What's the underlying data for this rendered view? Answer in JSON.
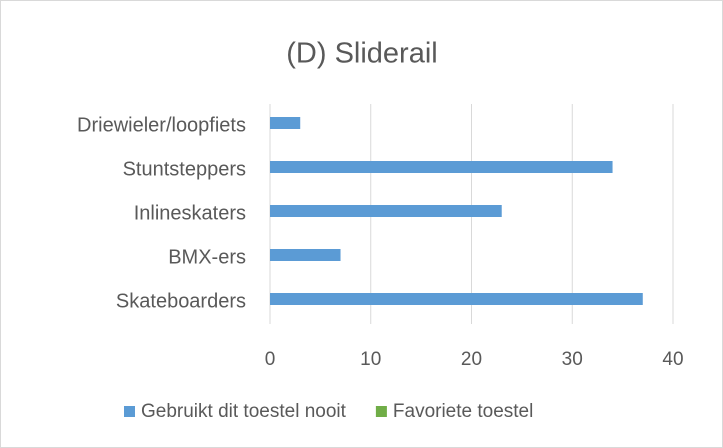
{
  "chart_data": {
    "type": "hbar",
    "title": "(D) Sliderail",
    "categories": [
      "Driewieler/loopfiets",
      "Stuntsteppers",
      "Inlineskaters",
      "BMX-ers",
      "Skateboarders"
    ],
    "series": [
      {
        "name": "Gebruikt dit toestel nooit",
        "color": "#5b9bd5",
        "values": [
          3,
          34,
          23,
          7,
          37
        ]
      },
      {
        "name": "Favoriete toestel",
        "color": "#70ad47",
        "values": [
          0,
          0,
          0,
          0,
          0
        ]
      }
    ],
    "xlim": [
      0,
      40
    ],
    "xticks": [
      0,
      10,
      20,
      30,
      40
    ],
    "grid": true,
    "legend": "bottom"
  }
}
